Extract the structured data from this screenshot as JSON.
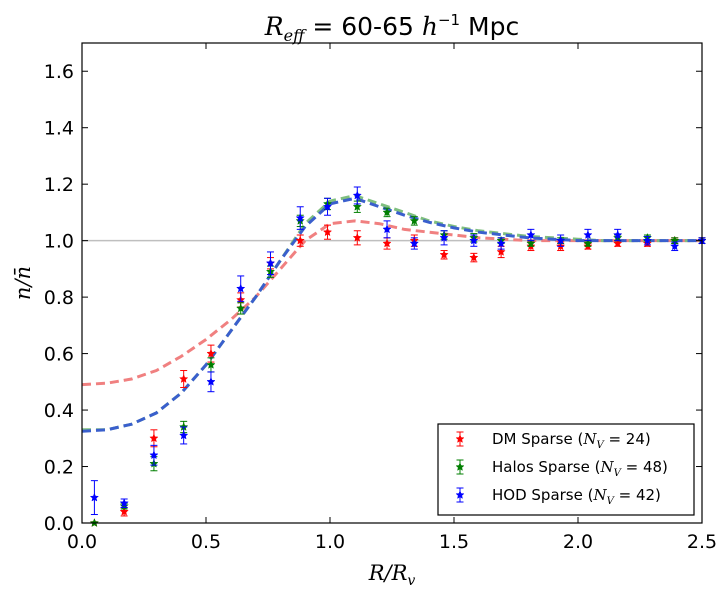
{
  "chart_data": {
    "type": "scatter",
    "title": "R_eff = 60-65 h^-1 Mpc",
    "title_parts": {
      "r": "R",
      "sub": "eff",
      "mid": " = 60-65 ",
      "h": "h",
      "sup": "−1",
      "unit": " Mpc"
    },
    "xlabel": "R/R_v",
    "xlabel_parts": {
      "main": "R/R",
      "sub": "v"
    },
    "ylabel": "n/n̄",
    "xlim": [
      0.0,
      2.5
    ],
    "ylim": [
      0.0,
      1.7
    ],
    "xticks": [
      "0.0",
      "0.5",
      "1.0",
      "1.5",
      "2.0",
      "2.5"
    ],
    "yticks": [
      "0.0",
      "0.2",
      "0.4",
      "0.6",
      "0.8",
      "1.0",
      "1.2",
      "1.4",
      "1.6"
    ],
    "reference_line": 1.0,
    "legend_position": "bottom-right",
    "series": [
      {
        "name": "DM Sparse",
        "legend_prefix": "DM Sparse (",
        "nv_value": "24",
        "color": "#ff0000",
        "x": [
          0.05,
          0.17,
          0.29,
          0.41,
          0.52,
          0.64,
          0.76,
          0.88,
          0.99,
          1.11,
          1.23,
          1.34,
          1.46,
          1.58,
          1.69,
          1.81,
          1.93,
          2.04,
          2.16,
          2.28,
          2.39,
          2.5
        ],
        "y": [
          0.0,
          0.04,
          0.3,
          0.51,
          0.6,
          0.79,
          0.92,
          1.0,
          1.03,
          1.01,
          0.99,
          1.0,
          0.95,
          0.94,
          0.96,
          0.98,
          0.98,
          0.98,
          0.99,
          0.99,
          1.0,
          1.0
        ],
        "err": [
          0.0,
          0.015,
          0.03,
          0.03,
          0.03,
          0.025,
          0.02,
          0.02,
          0.025,
          0.025,
          0.02,
          0.02,
          0.015,
          0.015,
          0.02,
          0.015,
          0.015,
          0.01,
          0.01,
          0.01,
          0.01,
          0.01
        ]
      },
      {
        "name": "Halos Sparse",
        "legend_prefix": "Halos Sparse (",
        "nv_value": "48",
        "color": "#007f00",
        "x": [
          0.05,
          0.17,
          0.29,
          0.41,
          0.52,
          0.64,
          0.76,
          0.88,
          0.99,
          1.11,
          1.23,
          1.34,
          1.46,
          1.58,
          1.69,
          1.81,
          1.93,
          2.04,
          2.16,
          2.28,
          2.39,
          2.5
        ],
        "y": [
          0.0,
          0.06,
          0.21,
          0.34,
          0.56,
          0.76,
          0.89,
          1.07,
          1.13,
          1.12,
          1.1,
          1.07,
          1.02,
          1.01,
          1.0,
          0.99,
          1.0,
          0.99,
          1.01,
          1.01,
          1.0,
          1.0
        ],
        "err": [
          0.0,
          0.01,
          0.025,
          0.02,
          0.025,
          0.02,
          0.02,
          0.02,
          0.02,
          0.02,
          0.015,
          0.015,
          0.015,
          0.015,
          0.01,
          0.01,
          0.01,
          0.01,
          0.01,
          0.01,
          0.01,
          0.01
        ]
      },
      {
        "name": "HOD Sparse",
        "legend_prefix": "HOD Sparse (",
        "nv_value": "42",
        "color": "#0000ff",
        "x": [
          0.05,
          0.17,
          0.29,
          0.41,
          0.52,
          0.64,
          0.76,
          0.88,
          0.99,
          1.11,
          1.23,
          1.34,
          1.46,
          1.58,
          1.69,
          1.81,
          1.93,
          2.04,
          2.16,
          2.28,
          2.39,
          2.5
        ],
        "y": [
          0.09,
          0.07,
          0.24,
          0.31,
          0.5,
          0.83,
          0.92,
          1.08,
          1.12,
          1.16,
          1.04,
          0.99,
          1.01,
          1.0,
          0.99,
          1.02,
          1.0,
          1.02,
          1.02,
          1.0,
          0.98,
          1.0
        ],
        "err": [
          0.06,
          0.015,
          0.035,
          0.03,
          0.035,
          0.045,
          0.04,
          0.04,
          0.03,
          0.03,
          0.03,
          0.02,
          0.025,
          0.02,
          0.02,
          0.02,
          0.02,
          0.02,
          0.02,
          0.015,
          0.015,
          0.01
        ]
      }
    ],
    "fits": [
      {
        "name": "DM fit",
        "color": "#f08080",
        "x": [
          0.0,
          0.1,
          0.2,
          0.3,
          0.4,
          0.5,
          0.6,
          0.7,
          0.8,
          0.9,
          1.0,
          1.1,
          1.2,
          1.3,
          1.4,
          1.5,
          1.6,
          1.7,
          1.8,
          1.9,
          2.0,
          2.1,
          2.2,
          2.3,
          2.4,
          2.5
        ],
        "y": [
          0.49,
          0.495,
          0.51,
          0.54,
          0.59,
          0.65,
          0.72,
          0.8,
          0.9,
          1.0,
          1.06,
          1.07,
          1.06,
          1.04,
          1.03,
          1.02,
          1.01,
          1.005,
          1.0,
          1.0,
          1.0,
          1.0,
          1.0,
          1.0,
          1.0,
          1.0
        ]
      },
      {
        "name": "Halos fit",
        "color": "#7fbf7f",
        "x": [
          0.0,
          0.1,
          0.2,
          0.3,
          0.4,
          0.5,
          0.6,
          0.7,
          0.8,
          0.9,
          1.0,
          1.1,
          1.2,
          1.3,
          1.4,
          1.5,
          1.6,
          1.7,
          1.8,
          1.9,
          2.0,
          2.1,
          2.2,
          2.3,
          2.4,
          2.5
        ],
        "y": [
          0.33,
          0.33,
          0.35,
          0.39,
          0.46,
          0.56,
          0.68,
          0.8,
          0.93,
          1.06,
          1.14,
          1.16,
          1.13,
          1.1,
          1.07,
          1.05,
          1.035,
          1.025,
          1.015,
          1.01,
          1.005,
          1.0,
          1.0,
          1.0,
          1.0,
          1.0
        ]
      },
      {
        "name": "HOD fit",
        "color": "#3a5fcd",
        "x": [
          0.0,
          0.1,
          0.2,
          0.3,
          0.4,
          0.5,
          0.6,
          0.7,
          0.8,
          0.9,
          1.0,
          1.1,
          1.2,
          1.3,
          1.4,
          1.5,
          1.6,
          1.7,
          1.8,
          1.9,
          2.0,
          2.1,
          2.2,
          2.3,
          2.4,
          2.5
        ],
        "y": [
          0.325,
          0.33,
          0.35,
          0.39,
          0.46,
          0.56,
          0.68,
          0.8,
          0.93,
          1.05,
          1.13,
          1.15,
          1.12,
          1.09,
          1.065,
          1.045,
          1.03,
          1.02,
          1.01,
          1.005,
          1.0,
          1.0,
          1.0,
          1.0,
          1.0,
          1.0
        ]
      }
    ]
  }
}
